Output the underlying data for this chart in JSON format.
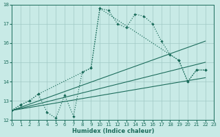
{
  "xlabel": "Humidex (Indice chaleur)",
  "bg_color": "#c8eae6",
  "grid_color": "#a0c8c4",
  "line_color": "#1a6b5a",
  "xlim": [
    0,
    23
  ],
  "ylim": [
    12,
    18
  ],
  "xticks": [
    0,
    1,
    2,
    3,
    4,
    5,
    6,
    7,
    8,
    9,
    10,
    11,
    12,
    13,
    14,
    15,
    16,
    17,
    18,
    19,
    20,
    21,
    22,
    23
  ],
  "yticks": [
    12,
    13,
    14,
    15,
    16,
    17,
    18
  ],
  "curve_main_x": [
    0,
    1,
    2,
    3,
    9,
    10,
    11,
    12,
    13,
    14,
    15,
    16,
    17,
    18,
    19,
    20,
    21,
    22
  ],
  "curve_main_y": [
    12.5,
    12.8,
    13.0,
    13.35,
    14.7,
    17.8,
    17.7,
    17.0,
    16.8,
    17.5,
    17.4,
    17.0,
    16.1,
    15.4,
    15.1,
    14.0,
    14.6,
    14.6
  ],
  "curve_jagged_x": [
    0,
    1,
    2,
    3,
    4,
    5,
    6,
    7,
    8,
    9,
    10,
    19,
    20,
    21,
    22
  ],
  "curve_jagged_y": [
    12.5,
    12.8,
    13.0,
    13.35,
    12.4,
    12.1,
    13.3,
    12.2,
    14.5,
    14.7,
    17.8,
    15.1,
    14.0,
    14.6,
    14.6
  ],
  "line1_x": [
    0,
    22
  ],
  "line1_y": [
    12.5,
    16.1
  ],
  "line2_x": [
    0,
    22
  ],
  "line2_y": [
    12.5,
    15.0
  ],
  "line3_x": [
    0,
    22
  ],
  "line3_y": [
    12.5,
    14.2
  ]
}
